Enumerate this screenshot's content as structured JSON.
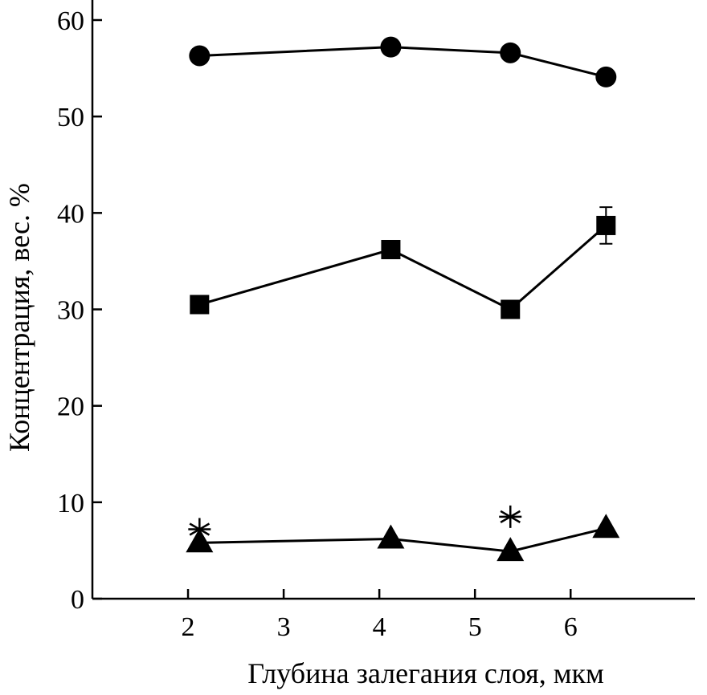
{
  "chart_data": {
    "type": "line",
    "xlabel": "Глубина залегания слоя, мкм",
    "ylabel": "Концентрация, вес. %",
    "xlim": [
      1.0,
      7.3
    ],
    "ylim": [
      0,
      60
    ],
    "xticks": [
      2,
      3,
      4,
      5,
      6
    ],
    "yticks": [
      0,
      10,
      20,
      30,
      40,
      50,
      60
    ],
    "grid": false,
    "legend": "none",
    "series": [
      {
        "marker": "circle",
        "connected": true,
        "x": [
          2.12,
          4.12,
          5.37,
          6.37
        ],
        "y": [
          56.3,
          57.2,
          56.6,
          54.1
        ]
      },
      {
        "marker": "square",
        "connected": true,
        "x": [
          2.12,
          4.12,
          5.37,
          6.37
        ],
        "y": [
          30.5,
          36.2,
          30.0,
          38.7
        ],
        "error_last": 1.9
      },
      {
        "marker": "triangle",
        "connected": true,
        "x": [
          2.12,
          4.12,
          5.37,
          6.37
        ],
        "y": [
          5.8,
          6.2,
          4.9,
          7.3
        ]
      },
      {
        "marker": "asterisk",
        "connected": false,
        "x": [
          2.12,
          5.37
        ],
        "y": [
          7.2,
          8.5
        ]
      }
    ]
  }
}
